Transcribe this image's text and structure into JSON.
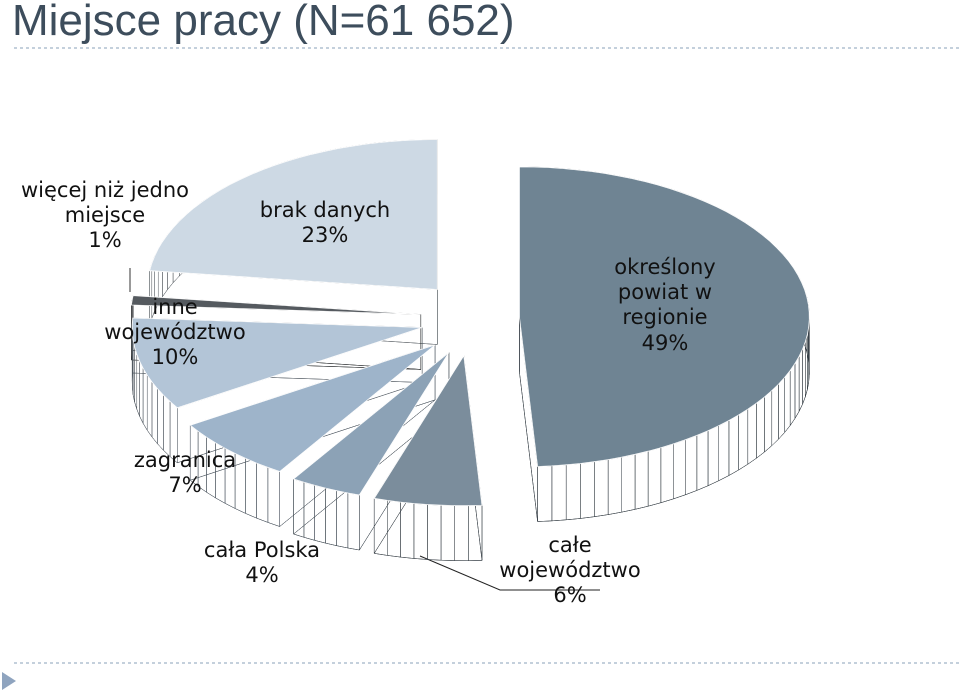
{
  "chart_data": {
    "type": "pie3d",
    "title": "Miejsce pracy (N=61 652)",
    "categories": [
      "określony powiat w regionie",
      "całe województwo",
      "cała Polska",
      "zagranica",
      "inne województwo",
      "więcej niż jedno miejsce",
      "brak danych"
    ],
    "values": [
      49,
      6,
      4,
      7,
      10,
      1,
      23
    ],
    "value_labels": [
      "49%",
      "6%",
      "4%",
      "7%",
      "10%",
      "1%",
      "23%"
    ],
    "colors": [
      "#6f8493",
      "#7b8d9c",
      "#8ca2b6",
      "#9eb4ca",
      "#b3c5d7",
      "#555a5f",
      "#cdd9e4"
    ]
  }
}
